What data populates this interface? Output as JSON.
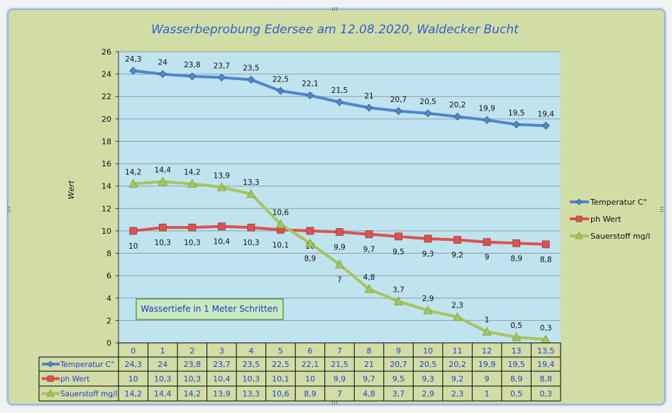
{
  "chart_data": {
    "type": "line",
    "title": "Wasserbeprobung Edersee am 12.08.2020, Waldecker Bucht",
    "ylabel": "Wert",
    "ylim": [
      0,
      26
    ],
    "yticks": [
      "0",
      "2",
      "4",
      "6",
      "8",
      "10",
      "12",
      "14",
      "16",
      "18",
      "20",
      "22",
      "24",
      "26"
    ],
    "categories": [
      "0",
      "1",
      "2",
      "3",
      "4",
      "5",
      "6",
      "7",
      "8",
      "9",
      "10",
      "11",
      "12",
      "13",
      "13,5"
    ],
    "grid": true,
    "legend_position": "right",
    "annotation": "Wassertiefe in 1 Meter Schritten",
    "series": [
      {
        "name": "Temperatur C°",
        "color": "#4f86cc",
        "marker": "diamond",
        "label_position": "above",
        "values": [
          24.3,
          24,
          23.8,
          23.7,
          23.5,
          22.5,
          22.1,
          21.5,
          21,
          20.7,
          20.5,
          20.2,
          19.9,
          19.5,
          19.4
        ],
        "labels": [
          "24,3",
          "24",
          "23,8",
          "23,7",
          "23,5",
          "22,5",
          "22,1",
          "21,5",
          "21",
          "20,7",
          "20,5",
          "20,2",
          "19,9",
          "19,5",
          "19,4"
        ]
      },
      {
        "name": "ph Wert",
        "color": "#d9534f",
        "marker": "square",
        "label_position": "below",
        "values": [
          10,
          10.3,
          10.3,
          10.4,
          10.3,
          10.1,
          10,
          9.9,
          9.7,
          9.5,
          9.3,
          9.2,
          9,
          8.9,
          8.8
        ],
        "labels": [
          "10",
          "10,3",
          "10,3",
          "10,4",
          "10,3",
          "10,1",
          "10",
          "9,9",
          "9,7",
          "9,5",
          "9,3",
          "9,2",
          "9",
          "8,9",
          "8,8"
        ]
      },
      {
        "name": "Sauerstoff mg/l",
        "color": "#a6c65a",
        "marker": "triangle",
        "label_position": "mixed",
        "values": [
          14.2,
          14.4,
          14.2,
          13.9,
          13.3,
          10.6,
          8.9,
          7,
          4.8,
          3.7,
          2.9,
          2.3,
          1,
          0.5,
          0.3
        ],
        "labels": [
          "14,2",
          "14,4",
          "14,2",
          "13,9",
          "13,3",
          "10,6",
          "8,9",
          "7",
          "4,8",
          "3,7",
          "2,9",
          "2,3",
          "1",
          "0,5",
          "0,3"
        ]
      }
    ]
  }
}
